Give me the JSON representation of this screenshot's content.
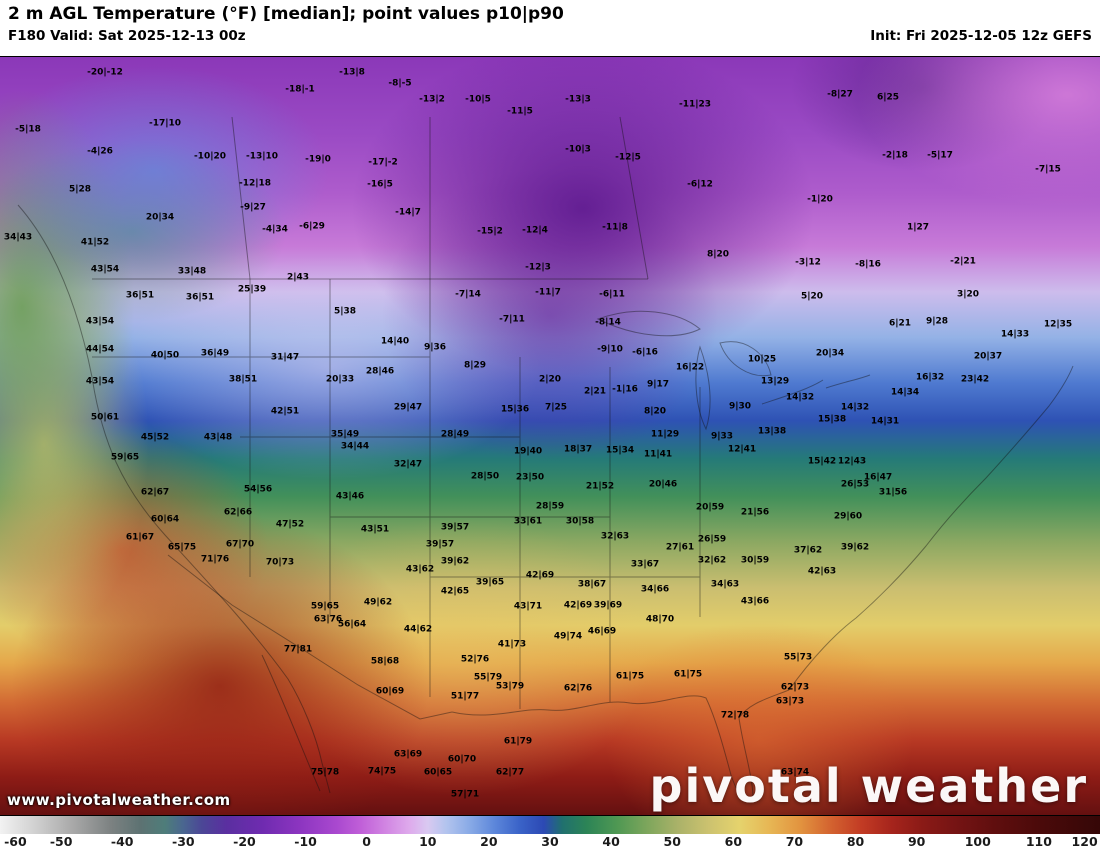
{
  "header": {
    "title": "2 m AGL Temperature (°F) [median]; point values p10|p90",
    "valid": "F180 Valid: Sat 2025-12-13 00z",
    "init": "Init: Fri 2025-12-05 12z GEFS"
  },
  "watermark": {
    "url": "www.pivotalweather.com",
    "brand": "pivotal weather"
  },
  "colorbar": {
    "unit": "°F",
    "min": -60,
    "max": 120,
    "ticks": [
      -60,
      -50,
      -40,
      -30,
      -20,
      -10,
      0,
      10,
      20,
      30,
      40,
      50,
      60,
      70,
      80,
      90,
      100,
      110,
      120
    ],
    "stops": [
      {
        "t": -60,
        "c": "#f2f2f2"
      },
      {
        "t": -54,
        "c": "#cfcfcf"
      },
      {
        "t": -48,
        "c": "#a8a8a8"
      },
      {
        "t": -42,
        "c": "#7d8282"
      },
      {
        "t": -37,
        "c": "#5d7272"
      },
      {
        "t": -33,
        "c": "#4e7d7a"
      },
      {
        "t": -30,
        "c": "#4a6690"
      },
      {
        "t": -27,
        "c": "#4b4796"
      },
      {
        "t": -23,
        "c": "#5a2fa0"
      },
      {
        "t": -17,
        "c": "#6f2bb0"
      },
      {
        "t": -11,
        "c": "#8c35c0"
      },
      {
        "t": -5,
        "c": "#a948cf"
      },
      {
        "t": -1,
        "c": "#c05fd8"
      },
      {
        "t": 3,
        "c": "#d184e2"
      },
      {
        "t": 7,
        "c": "#deaaec"
      },
      {
        "t": 10,
        "c": "#d9c9f1"
      },
      {
        "t": 13,
        "c": "#b3c4ee"
      },
      {
        "t": 17,
        "c": "#87a9e6"
      },
      {
        "t": 21,
        "c": "#5c86da"
      },
      {
        "t": 25,
        "c": "#3a63c8"
      },
      {
        "t": 29,
        "c": "#2c49b4"
      },
      {
        "t": 32,
        "c": "#20706e"
      },
      {
        "t": 36,
        "c": "#2c8456"
      },
      {
        "t": 41,
        "c": "#4f9853"
      },
      {
        "t": 46,
        "c": "#7ea65c"
      },
      {
        "t": 51,
        "c": "#abb269"
      },
      {
        "t": 56,
        "c": "#ccc26f"
      },
      {
        "t": 61,
        "c": "#e5d36d"
      },
      {
        "t": 66,
        "c": "#e7b654"
      },
      {
        "t": 71,
        "c": "#e2933f"
      },
      {
        "t": 76,
        "c": "#d3622f"
      },
      {
        "t": 81,
        "c": "#c23b24"
      },
      {
        "t": 86,
        "c": "#a5241c"
      },
      {
        "t": 91,
        "c": "#8a1a16"
      },
      {
        "t": 97,
        "c": "#731313"
      },
      {
        "t": 103,
        "c": "#5f0e0e"
      },
      {
        "t": 110,
        "c": "#4b0a0a"
      },
      {
        "t": 120,
        "c": "#350707"
      }
    ]
  },
  "map": {
    "points": [
      [
        105,
        16,
        "-20|-12"
      ],
      [
        300,
        33,
        "-18|-1"
      ],
      [
        352,
        16,
        "-13|8"
      ],
      [
        400,
        27,
        "-8|-5"
      ],
      [
        432,
        43,
        "-13|2"
      ],
      [
        478,
        43,
        "-10|5"
      ],
      [
        520,
        55,
        "-11|5"
      ],
      [
        578,
        43,
        "-13|3"
      ],
      [
        695,
        48,
        "-11|23"
      ],
      [
        840,
        38,
        "-8|27"
      ],
      [
        888,
        41,
        "6|25"
      ],
      [
        165,
        67,
        "-17|10"
      ],
      [
        28,
        73,
        "-5|18"
      ],
      [
        210,
        100,
        "-10|20"
      ],
      [
        262,
        100,
        "-13|10"
      ],
      [
        318,
        103,
        "-19|0"
      ],
      [
        383,
        106,
        "-17|-2"
      ],
      [
        578,
        93,
        "-10|3"
      ],
      [
        628,
        101,
        "-12|5"
      ],
      [
        100,
        95,
        "-4|26"
      ],
      [
        255,
        127,
        "-12|18"
      ],
      [
        380,
        128,
        "-16|5"
      ],
      [
        80,
        133,
        "5|28"
      ],
      [
        700,
        128,
        "-6|12"
      ],
      [
        895,
        99,
        "-2|18"
      ],
      [
        940,
        99,
        "-5|17"
      ],
      [
        1048,
        113,
        "-7|15"
      ],
      [
        253,
        151,
        "-9|27"
      ],
      [
        408,
        156,
        "-14|7"
      ],
      [
        160,
        161,
        "20|34"
      ],
      [
        275,
        173,
        "-4|34"
      ],
      [
        312,
        170,
        "-6|29"
      ],
      [
        490,
        175,
        "-15|2"
      ],
      [
        535,
        174,
        "-12|4"
      ],
      [
        615,
        171,
        "-11|8"
      ],
      [
        820,
        143,
        "-1|20"
      ],
      [
        918,
        171,
        "1|27"
      ],
      [
        18,
        181,
        "34|43"
      ],
      [
        95,
        186,
        "41|52"
      ],
      [
        718,
        198,
        "8|20"
      ],
      [
        808,
        206,
        "-3|12"
      ],
      [
        868,
        208,
        "-8|16"
      ],
      [
        963,
        205,
        "-2|21"
      ],
      [
        105,
        213,
        "43|54"
      ],
      [
        192,
        215,
        "33|48"
      ],
      [
        298,
        221,
        "2|43"
      ],
      [
        538,
        211,
        "-12|3"
      ],
      [
        548,
        236,
        "-11|7"
      ],
      [
        812,
        240,
        "5|20"
      ],
      [
        140,
        239,
        "36|51"
      ],
      [
        200,
        241,
        "36|51"
      ],
      [
        252,
        233,
        "25|39"
      ],
      [
        345,
        255,
        "5|38"
      ],
      [
        468,
        238,
        "-7|14"
      ],
      [
        612,
        238,
        "-6|11"
      ],
      [
        100,
        265,
        "43|54"
      ],
      [
        512,
        263,
        "-7|11"
      ],
      [
        608,
        266,
        "-8|14"
      ],
      [
        900,
        267,
        "6|21"
      ],
      [
        937,
        265,
        "9|28"
      ],
      [
        968,
        238,
        "3|20"
      ],
      [
        1015,
        278,
        "14|33"
      ],
      [
        1058,
        268,
        "12|35"
      ],
      [
        100,
        293,
        "44|54"
      ],
      [
        165,
        299,
        "40|50"
      ],
      [
        215,
        297,
        "36|49"
      ],
      [
        285,
        301,
        "31|47"
      ],
      [
        395,
        285,
        "14|40"
      ],
      [
        435,
        291,
        "9|36"
      ],
      [
        610,
        293,
        "-9|10"
      ],
      [
        645,
        296,
        "-6|16"
      ],
      [
        690,
        311,
        "16|22"
      ],
      [
        762,
        303,
        "10|25"
      ],
      [
        830,
        297,
        "20|34"
      ],
      [
        988,
        300,
        "20|37"
      ],
      [
        930,
        321,
        "16|32"
      ],
      [
        100,
        325,
        "43|54"
      ],
      [
        243,
        323,
        "38|51"
      ],
      [
        340,
        323,
        "20|33"
      ],
      [
        380,
        315,
        "28|46"
      ],
      [
        475,
        309,
        "8|29"
      ],
      [
        550,
        323,
        "2|20"
      ],
      [
        595,
        335,
        "2|21"
      ],
      [
        625,
        333,
        "-1|16"
      ],
      [
        658,
        328,
        "9|17"
      ],
      [
        775,
        325,
        "13|29"
      ],
      [
        800,
        341,
        "14|32"
      ],
      [
        975,
        323,
        "23|42"
      ],
      [
        905,
        336,
        "14|34"
      ],
      [
        105,
        361,
        "50|61"
      ],
      [
        285,
        355,
        "42|51"
      ],
      [
        408,
        351,
        "29|47"
      ],
      [
        515,
        353,
        "15|36"
      ],
      [
        556,
        351,
        "7|25"
      ],
      [
        655,
        355,
        "8|20"
      ],
      [
        740,
        350,
        "9|30"
      ],
      [
        832,
        363,
        "15|38"
      ],
      [
        885,
        365,
        "14|31"
      ],
      [
        855,
        351,
        "14|32"
      ],
      [
        155,
        381,
        "45|52"
      ],
      [
        218,
        381,
        "43|48"
      ],
      [
        345,
        378,
        "35|49"
      ],
      [
        455,
        378,
        "28|49"
      ],
      [
        665,
        378,
        "11|29"
      ],
      [
        722,
        380,
        "9|33"
      ],
      [
        772,
        375,
        "13|38"
      ],
      [
        125,
        401,
        "59|65"
      ],
      [
        528,
        395,
        "19|40"
      ],
      [
        578,
        393,
        "18|37"
      ],
      [
        620,
        394,
        "15|34"
      ],
      [
        658,
        398,
        "11|41"
      ],
      [
        742,
        393,
        "12|41"
      ],
      [
        822,
        405,
        "15|42"
      ],
      [
        852,
        405,
        "12|43"
      ],
      [
        155,
        436,
        "62|67"
      ],
      [
        355,
        390,
        "34|44"
      ],
      [
        408,
        408,
        "32|47"
      ],
      [
        485,
        420,
        "28|50"
      ],
      [
        530,
        421,
        "23|50"
      ],
      [
        600,
        430,
        "21|52"
      ],
      [
        663,
        428,
        "20|46"
      ],
      [
        878,
        421,
        "16|47"
      ],
      [
        855,
        428,
        "26|53"
      ],
      [
        893,
        436,
        "31|56"
      ],
      [
        165,
        463,
        "60|64"
      ],
      [
        238,
        456,
        "62|66"
      ],
      [
        258,
        433,
        "54|56"
      ],
      [
        350,
        440,
        "43|46"
      ],
      [
        550,
        450,
        "28|59"
      ],
      [
        580,
        465,
        "30|58"
      ],
      [
        710,
        451,
        "20|59"
      ],
      [
        755,
        456,
        "21|56"
      ],
      [
        848,
        460,
        "29|60"
      ],
      [
        140,
        481,
        "61|67"
      ],
      [
        182,
        491,
        "65|75"
      ],
      [
        290,
        468,
        "47|52"
      ],
      [
        375,
        473,
        "43|51"
      ],
      [
        455,
        471,
        "39|57"
      ],
      [
        528,
        465,
        "33|61"
      ],
      [
        615,
        480,
        "32|63"
      ],
      [
        680,
        491,
        "27|61"
      ],
      [
        712,
        483,
        "26|59"
      ],
      [
        808,
        494,
        "37|62"
      ],
      [
        855,
        491,
        "39|62"
      ],
      [
        215,
        503,
        "71|76"
      ],
      [
        240,
        488,
        "67|70"
      ],
      [
        280,
        506,
        "70|73"
      ],
      [
        440,
        488,
        "39|57"
      ],
      [
        455,
        505,
        "39|62"
      ],
      [
        540,
        519,
        "42|69"
      ],
      [
        645,
        508,
        "33|67"
      ],
      [
        712,
        504,
        "32|62"
      ],
      [
        755,
        504,
        "30|59"
      ],
      [
        822,
        515,
        "42|63"
      ],
      [
        420,
        513,
        "43|62"
      ],
      [
        490,
        526,
        "39|65"
      ],
      [
        592,
        528,
        "38|67"
      ],
      [
        655,
        533,
        "34|66"
      ],
      [
        725,
        528,
        "34|63"
      ],
      [
        755,
        545,
        "43|66"
      ],
      [
        325,
        550,
        "59|65"
      ],
      [
        378,
        546,
        "49|62"
      ],
      [
        455,
        535,
        "42|65"
      ],
      [
        528,
        550,
        "43|71"
      ],
      [
        578,
        549,
        "42|69"
      ],
      [
        608,
        549,
        "39|69"
      ],
      [
        660,
        563,
        "48|70"
      ],
      [
        328,
        563,
        "63|76"
      ],
      [
        352,
        568,
        "56|64"
      ],
      [
        418,
        573,
        "44|62"
      ],
      [
        568,
        580,
        "49|74"
      ],
      [
        602,
        575,
        "46|69"
      ],
      [
        298,
        593,
        "77|81"
      ],
      [
        385,
        605,
        "58|68"
      ],
      [
        475,
        603,
        "52|76"
      ],
      [
        512,
        588,
        "41|73"
      ],
      [
        798,
        601,
        "55|73"
      ],
      [
        578,
        632,
        "62|76"
      ],
      [
        630,
        620,
        "61|75"
      ],
      [
        688,
        618,
        "61|75"
      ],
      [
        390,
        635,
        "60|69"
      ],
      [
        488,
        621,
        "55|79"
      ],
      [
        465,
        640,
        "51|77"
      ],
      [
        510,
        630,
        "53|79"
      ],
      [
        795,
        631,
        "62|73"
      ],
      [
        790,
        645,
        "63|73"
      ],
      [
        735,
        659,
        "72|78"
      ],
      [
        408,
        698,
        "63|69"
      ],
      [
        438,
        716,
        "60|65"
      ],
      [
        462,
        703,
        "60|70"
      ],
      [
        510,
        716,
        "62|77"
      ],
      [
        518,
        685,
        "61|79"
      ],
      [
        325,
        716,
        "75|78"
      ],
      [
        382,
        715,
        "74|75"
      ],
      [
        465,
        738,
        "57|71"
      ],
      [
        795,
        716,
        "63|74"
      ]
    ]
  }
}
